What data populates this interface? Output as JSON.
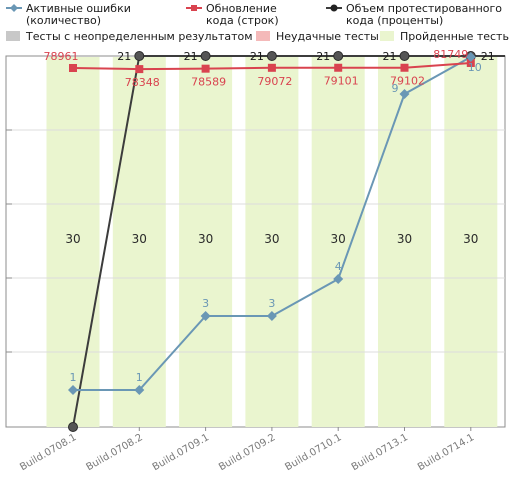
{
  "chart_data": {
    "type": "line",
    "categories": [
      "Build.0708.1",
      "Build.0708.2",
      "Build.0709.1",
      "Build.0709.2",
      "Build.0710.1",
      "Build.0713.1",
      "Build.0714.1"
    ],
    "legend": {
      "row1": [
        {
          "label_lines": [
            "Активные ошибки",
            "(количество)"
          ],
          "color": "#6a97b5",
          "marker": "diamond"
        },
        {
          "label_lines": [
            "Обновление",
            "кода (строк)"
          ],
          "color": "#d9434f",
          "marker": "square"
        },
        {
          "label_lines": [
            "Объем протестированного",
            "кода (проценты)"
          ],
          "color": "#3c3c3c",
          "marker": "circle"
        }
      ],
      "row2": [
        {
          "label": "Тесты с неопределенным результатом",
          "color": "#c8c8c8"
        },
        {
          "label": "Неудачные тесты",
          "color": "#f4b9b9"
        },
        {
          "label": "Пройденные тесты",
          "color": "#eaf5cf"
        }
      ]
    },
    "bars": {
      "name": "Пройденные тесты",
      "values": [
        30,
        30,
        30,
        30,
        30,
        30,
        30
      ],
      "color": "#eaf5cf"
    },
    "series": [
      {
        "name": "Активные ошибки (количество)",
        "values": [
          1,
          1,
          3,
          3,
          4,
          9,
          10
        ],
        "color": "#6a97b5",
        "marker": "diamond"
      },
      {
        "name": "Обновление кода (строк)",
        "values": [
          78961,
          78348,
          78589,
          79072,
          79101,
          79102,
          81749
        ],
        "color": "#d9434f",
        "marker": "square"
      },
      {
        "name": "Объем протестированного кода (проценты)",
        "values": [
          0,
          21,
          21,
          21,
          21,
          21,
          21
        ],
        "color": "#3c3c3c",
        "marker": "circle"
      }
    ],
    "point_labels": {
      "Активные ошибки (количество)": [
        "1",
        "1",
        "3",
        "3",
        "4",
        "9",
        "10"
      ],
      "Обновление кода (строк)": [
        "78961",
        "78348",
        "78589",
        "79072",
        "79101",
        "79102",
        "81749"
      ],
      "Объем протестированного кода (проценты)": [
        "",
        "21",
        "21",
        "21",
        "21",
        "21",
        "21"
      ]
    },
    "grid": true,
    "legend_position": "top"
  }
}
